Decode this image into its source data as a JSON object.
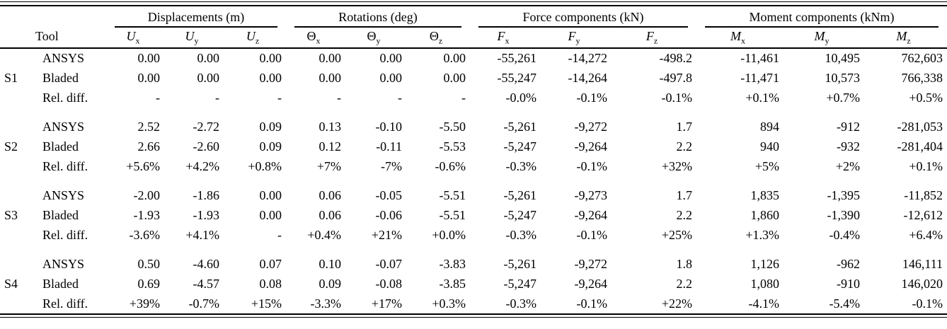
{
  "table": {
    "tool_header": "Tool",
    "column_groups": [
      {
        "id": "displacements",
        "label": "Displacements (m)"
      },
      {
        "id": "rotations",
        "label": "Rotations (deg)"
      },
      {
        "id": "forces",
        "label": "Force components (kN)"
      },
      {
        "id": "moments",
        "label": "Moment components (kNm)"
      }
    ],
    "columns": [
      {
        "id": "ux",
        "base": "U",
        "sub": "x"
      },
      {
        "id": "uy",
        "base": "U",
        "sub": "y"
      },
      {
        "id": "uz",
        "base": "U",
        "sub": "z"
      },
      {
        "id": "thx",
        "base": "Θ",
        "sub": "x"
      },
      {
        "id": "thy",
        "base": "Θ",
        "sub": "y"
      },
      {
        "id": "thz",
        "base": "Θ",
        "sub": "z"
      },
      {
        "id": "fx",
        "base": "F",
        "sub": "x"
      },
      {
        "id": "fy",
        "base": "F",
        "sub": "y"
      },
      {
        "id": "fz",
        "base": "F",
        "sub": "z"
      },
      {
        "id": "mx",
        "base": "M",
        "sub": "x"
      },
      {
        "id": "my",
        "base": "M",
        "sub": "y"
      },
      {
        "id": "mz",
        "base": "M",
        "sub": "z"
      }
    ],
    "sections": [
      {
        "id": "S1",
        "rows": [
          {
            "tool": "ANSYS",
            "values": [
              "0.00",
              "0.00",
              "0.00",
              "0.00",
              "0.00",
              "0.00",
              "-55,261",
              "-14,272",
              "-498.2",
              "-11,461",
              "10,495",
              "762,603"
            ]
          },
          {
            "tool": "Bladed",
            "values": [
              "0.00",
              "0.00",
              "0.00",
              "0.00",
              "0.00",
              "0.00",
              "-55,247",
              "-14,264",
              "-497.8",
              "-11,471",
              "10,573",
              "766,338"
            ]
          },
          {
            "tool": "Rel. diff.",
            "values": [
              "-",
              "-",
              "-",
              "-",
              "-",
              "-",
              "-0.0%",
              "-0.1%",
              "-0.1%",
              "+0.1%",
              "+0.7%",
              "+0.5%"
            ]
          }
        ]
      },
      {
        "id": "S2",
        "rows": [
          {
            "tool": "ANSYS",
            "values": [
              "2.52",
              "-2.72",
              "0.09",
              "0.13",
              "-0.10",
              "-5.50",
              "-5,261",
              "-9,272",
              "1.7",
              "894",
              "-912",
              "-281,053"
            ]
          },
          {
            "tool": "Bladed",
            "values": [
              "2.66",
              "-2.60",
              "0.09",
              "0.12",
              "-0.11",
              "-5.53",
              "-5,247",
              "-9,264",
              "2.2",
              "940",
              "-932",
              "-281,404"
            ]
          },
          {
            "tool": "Rel. diff.",
            "values": [
              "+5.6%",
              "+4.2%",
              "+0.8%",
              "+7%",
              "-7%",
              "-0.6%",
              "-0.3%",
              "-0.1%",
              "+32%",
              "+5%",
              "+2%",
              "+0.1%"
            ]
          }
        ]
      },
      {
        "id": "S3",
        "rows": [
          {
            "tool": "ANSYS",
            "values": [
              "-2.00",
              "-1.86",
              "0.00",
              "0.06",
              "-0.05",
              "-5.51",
              "-5,261",
              "-9,273",
              "1.7",
              "1,835",
              "-1,395",
              "-11,852"
            ]
          },
          {
            "tool": "Bladed",
            "values": [
              "-1.93",
              "-1.93",
              "0.00",
              "0.06",
              "-0.06",
              "-5.51",
              "-5,247",
              "-9,264",
              "2.2",
              "1,860",
              "-1,390",
              "-12,612"
            ]
          },
          {
            "tool": "Rel. diff.",
            "values": [
              "-3.6%",
              "+4.1%",
              "-",
              "+0.4%",
              "+21%",
              "+0.0%",
              "-0.3%",
              "-0.1%",
              "+25%",
              "+1.3%",
              "-0.4%",
              "+6.4%"
            ]
          }
        ]
      },
      {
        "id": "S4",
        "rows": [
          {
            "tool": "ANSYS",
            "values": [
              "0.50",
              "-4.60",
              "0.07",
              "0.10",
              "-0.07",
              "-3.83",
              "-5,261",
              "-9,272",
              "1.8",
              "1,126",
              "-962",
              "146,111"
            ]
          },
          {
            "tool": "Bladed",
            "values": [
              "0.69",
              "-4.57",
              "0.08",
              "0.09",
              "-0.08",
              "-3.85",
              "-5,247",
              "-9,264",
              "2.2",
              "1,080",
              "-910",
              "146,020"
            ]
          },
          {
            "tool": "Rel. diff.",
            "values": [
              "+39%",
              "-0.7%",
              "+15%",
              "-3.3%",
              "+17%",
              "+0.3%",
              "-0.3%",
              "-0.1%",
              "+22%",
              "-4.1%",
              "-5.4%",
              "-0.1%"
            ]
          }
        ]
      }
    ]
  }
}
